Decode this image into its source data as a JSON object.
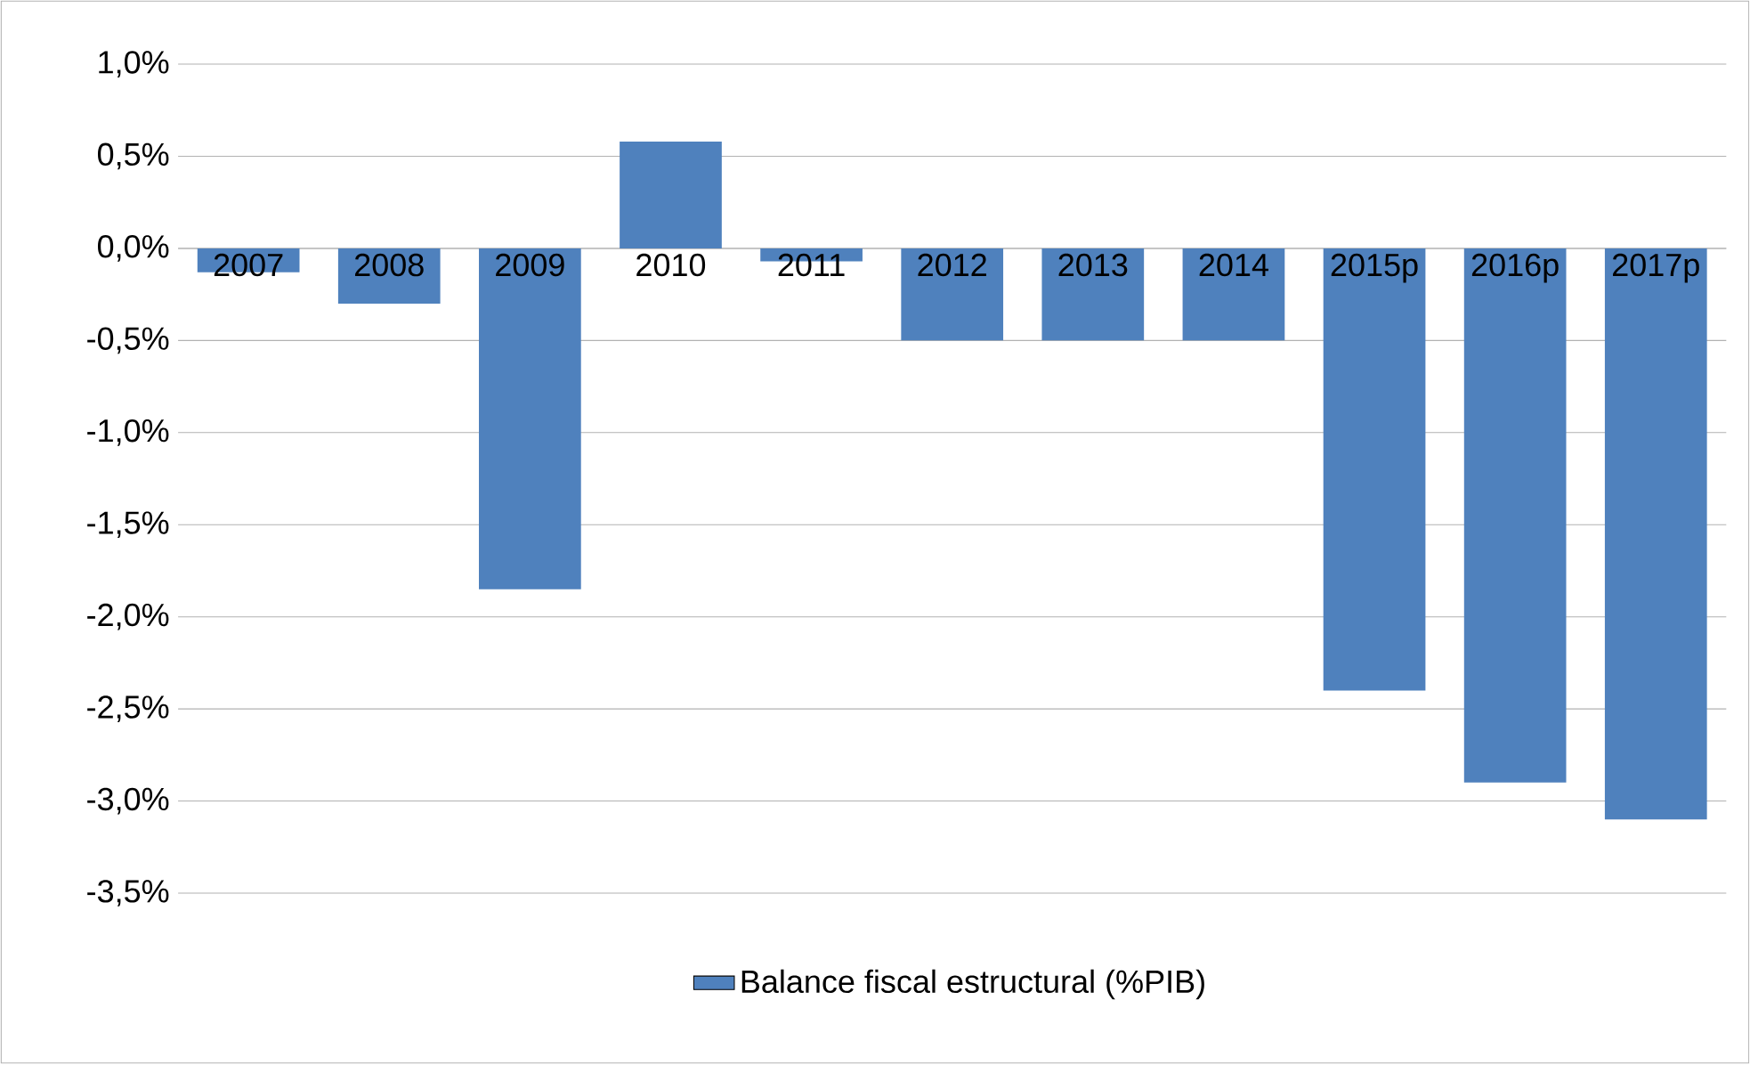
{
  "chart_data": {
    "type": "bar",
    "categories": [
      "2007",
      "2008",
      "2009",
      "2010",
      "2011",
      "2012",
      "2013",
      "2014",
      "2015p",
      "2016p",
      "2017p"
    ],
    "series": [
      {
        "name": "Balance fiscal estructural (%PIB)",
        "color": "#4f81bd",
        "values": [
          -0.13,
          -0.3,
          -1.85,
          0.58,
          -0.07,
          -0.5,
          -0.5,
          -0.5,
          -2.4,
          -2.9,
          -3.1
        ]
      }
    ],
    "ylim": [
      -3.5,
      1.0
    ],
    "yticks": [
      {
        "value": 1.0,
        "label": "1,0%"
      },
      {
        "value": 0.5,
        "label": "0,5%"
      },
      {
        "value": 0.0,
        "label": "0,0%"
      },
      {
        "value": -0.5,
        "label": "-0,5%"
      },
      {
        "value": -1.0,
        "label": "-1,0%"
      },
      {
        "value": -1.5,
        "label": "-1,5%"
      },
      {
        "value": -2.0,
        "label": "-2,0%"
      },
      {
        "value": -2.5,
        "label": "-2,5%"
      },
      {
        "value": -3.0,
        "label": "-3,0%"
      },
      {
        "value": -3.5,
        "label": "-3,5%"
      }
    ],
    "grid": "y",
    "legend": "bottom"
  }
}
